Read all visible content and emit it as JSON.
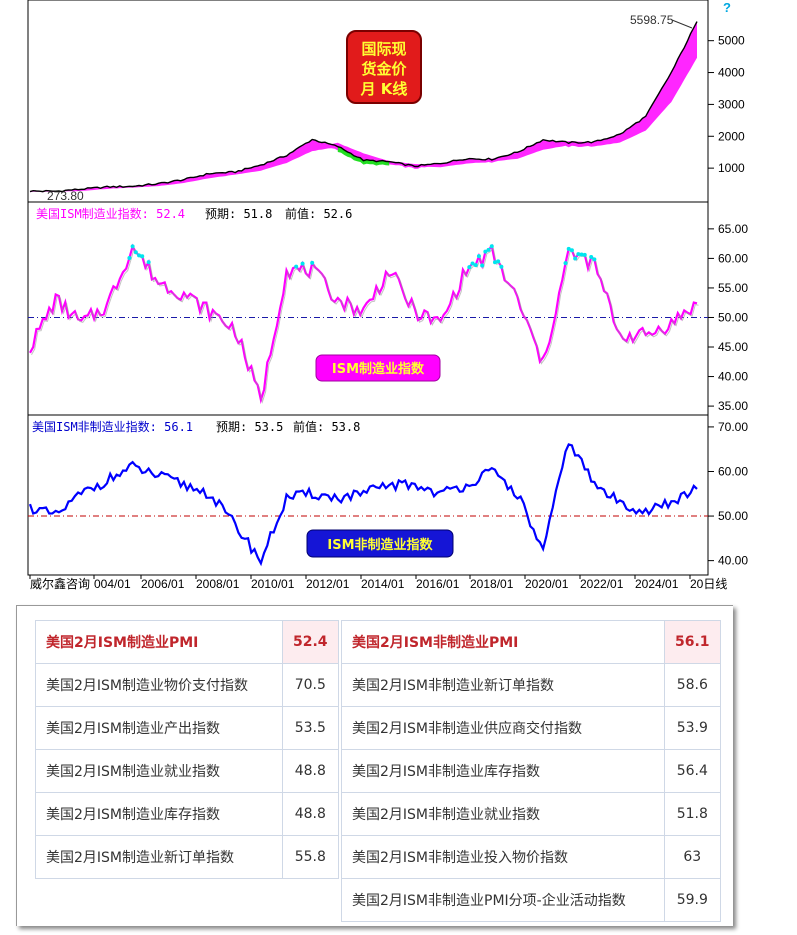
{
  "chart_data": [
    {
      "type": "line",
      "name_box": [
        "国际现",
        "货金价",
        "月 K线"
      ],
      "y_ticks": [
        "1000",
        "2000",
        "3000",
        "4000",
        "5000"
      ],
      "ylim": [
        0,
        5900
      ],
      "annotations": {
        "max_label": "5598.75",
        "min_label": "273.80",
        "help": "?"
      },
      "series": [
        {
          "x": [
            "2000",
            "2001",
            "2002",
            "2003",
            "2004",
            "2005",
            "2006",
            "2007",
            "2008",
            "2009",
            "2010",
            "2011",
            "2012",
            "2013",
            "2014",
            "2015",
            "2016",
            "2017",
            "2018",
            "2019",
            "2020",
            "2021",
            "2022",
            "2023",
            "2024",
            "2025",
            "2026"
          ],
          "values": [
            280,
            273.8,
            340,
            410,
            430,
            510,
            640,
            830,
            880,
            1100,
            1400,
            1900,
            1680,
            1250,
            1200,
            1060,
            1150,
            1300,
            1280,
            1500,
            1890,
            1800,
            1820,
            2060,
            2620,
            4000,
            5598.75
          ]
        }
      ],
      "colors": {
        "price": "#000000",
        "ma_up": "#ff00ff",
        "ma_down": "#22dd22"
      }
    },
    {
      "type": "line",
      "header": {
        "name": "美国ISM制造业指数: 52.4",
        "forecast": "预期: 51.8",
        "prev": "前值: 52.6"
      },
      "label_box": "ISM制造业指数",
      "y_ticks": [
        "35.00",
        "40.00",
        "45.00",
        "50.00",
        "55.00",
        "60.00",
        "65.00"
      ],
      "ylim": [
        34,
        66.5
      ],
      "reference": 50,
      "series": [
        {
          "x": [
            "2000",
            "2001",
            "2002",
            "2003",
            "2004",
            "2005",
            "2006",
            "2007",
            "2008",
            "2009",
            "2010",
            "2011",
            "2012",
            "2013",
            "2014",
            "2015",
            "2016",
            "2017",
            "2018",
            "2019",
            "2020",
            "2021",
            "2022",
            "2023",
            "2024",
            "2025",
            "2026"
          ],
          "values": [
            45,
            53,
            49,
            52,
            62,
            56,
            54,
            51,
            48,
            36,
            58,
            58,
            53,
            51,
            58,
            51,
            49,
            58,
            61,
            53,
            42,
            61,
            59,
            47,
            47,
            49,
            52.4
          ]
        }
      ],
      "colors": {
        "line": "#ff00ff",
        "high": "#00e5ee",
        "reference": "#1a1aa8"
      }
    },
    {
      "type": "line",
      "header": {
        "name": "美国ISM非制造业指数: 56.1",
        "forecast": "预期: 53.5",
        "prev": "前值: 53.8"
      },
      "label_box": "ISM非制造业指数",
      "y_ticks": [
        "40.00",
        "50.00",
        "60.00",
        "70.00"
      ],
      "ylim": [
        37,
        72
      ],
      "reference": 50,
      "x_ticks": [
        "威尔鑫咨询",
        "004/01",
        "2006/01",
        "2008/01",
        "2010/01",
        "2012/01",
        "2014/01",
        "2016/01",
        "2018/01",
        "2020/01",
        "2022/01",
        "2024/01",
        "20日线"
      ],
      "series": [
        {
          "x": [
            "2000",
            "2001",
            "2002",
            "2003",
            "2004",
            "2005",
            "2006",
            "2007",
            "2008",
            "2009",
            "2010",
            "2011",
            "2012",
            "2013",
            "2014",
            "2015",
            "2016",
            "2017",
            "2018",
            "2019",
            "2020",
            "2021",
            "2022",
            "2023",
            "2024",
            "2025",
            "2026"
          ],
          "values": [
            52,
            50,
            55,
            58,
            61,
            59,
            57,
            55,
            48,
            40,
            54,
            55,
            54,
            55,
            57,
            57,
            55,
            57,
            60,
            55,
            42,
            67,
            57,
            53,
            51,
            53,
            56.1
          ]
        }
      ],
      "colors": {
        "line": "#0000ff",
        "reference": "#c00000"
      }
    }
  ],
  "table": {
    "left": [
      {
        "label": "美国2月ISM制造业PMI",
        "value": "52.4"
      },
      {
        "label": "美国2月ISM制造业物价支付指数",
        "value": "70.5"
      },
      {
        "label": "美国2月ISM制造业产出指数",
        "value": "53.5"
      },
      {
        "label": "美国2月ISM制造业就业指数",
        "value": "48.8"
      },
      {
        "label": "美国2月ISM制造业库存指数",
        "value": "48.8"
      },
      {
        "label": "美国2月ISM制造业新订单指数",
        "value": "55.8"
      }
    ],
    "right": [
      {
        "label": "美国2月ISM非制造业PMI",
        "value": "56.1"
      },
      {
        "label": "美国2月ISM非制造业新订单指数",
        "value": "58.6"
      },
      {
        "label": "美国2月ISM非制造业供应商交付指数",
        "value": "53.9"
      },
      {
        "label": "美国2月ISM非制造业库存指数",
        "value": "56.4"
      },
      {
        "label": "美国2月ISM非制造业就业指数",
        "value": "51.8"
      },
      {
        "label": "美国2月ISM非制造业投入物价指数",
        "value": "63"
      },
      {
        "label": "美国2月ISM非制造业PMI分项-企业活动指数",
        "value": "59.9"
      }
    ]
  }
}
